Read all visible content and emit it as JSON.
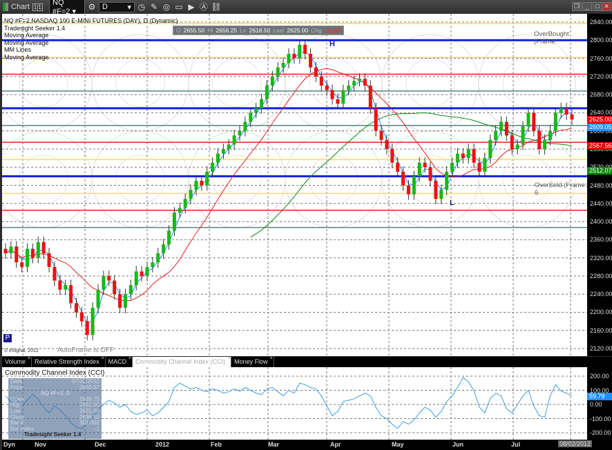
{
  "window": {
    "title": "Chart",
    "badge": "1|1",
    "symbol": "NQ #F=2",
    "interval": "D"
  },
  "toolbar_icons": [
    "gear-icon",
    "clock-icon",
    "pencil-icon",
    "draw-icon",
    "screen-icon",
    "play-icon",
    "annotation-icon",
    "link-icon"
  ],
  "legend": [
    "NQ #F=2,NASDAQ 100 E-MINI FUTURES (DAY), D (Dynamic)",
    "Tradesight Seeker 1.4",
    "Moving Average",
    "Moving Average",
    "MM Lines",
    "Moving Average"
  ],
  "ohlc": {
    "o_label": "O",
    "o": "2655.50",
    "h_label": "Hi",
    "h": "2656.25",
    "l_label": "Lo",
    "l": "2618.50",
    "last_label": "Last",
    "last": "2625.00",
    "chg_label": "Chg",
    "chg": "-11.50"
  },
  "annotations": {
    "overbought": "OverBought (Frame",
    "oversold": "OverSold (Frame: 6",
    "autoframe": "AutoFrame is OFF",
    "copyright": "© eSignal, 2012",
    "high_marker": "H",
    "low_marker": "L",
    "p_marker": "P"
  },
  "price_axis": {
    "ticks": [
      "2840.00",
      "2800.00",
      "2760.00",
      "2720.00",
      "2680.00",
      "2640.00",
      "2600.00",
      "2560.00",
      "2520.00",
      "2480.00",
      "2440.00",
      "2400.00",
      "2360.00",
      "2320.00",
      "2280.00",
      "2240.00",
      "2200.00",
      "2160.00",
      "2120.00"
    ],
    "tags": [
      {
        "value": "2625.00",
        "price": 2625,
        "color": "#e00000"
      },
      {
        "value": "2609.05",
        "price": 2609,
        "color": "#1e90ff"
      },
      {
        "value": "2567.56",
        "price": 2567.5,
        "color": "#e00000"
      },
      {
        "value": "2512.07",
        "price": 2512,
        "color": "#0a8a0a"
      }
    ]
  },
  "mm_lines": [
    {
      "price": 2837,
      "color": "#ffee00"
    },
    {
      "price": 2800,
      "color": "#1020e0"
    },
    {
      "price": 2762,
      "color": "#ffee00"
    },
    {
      "price": 2725,
      "color": "#e02020"
    },
    {
      "price": 2688,
      "color": "#5a8080"
    },
    {
      "price": 2650,
      "color": "#1020e0"
    },
    {
      "price": 2612,
      "color": "#5a8080"
    },
    {
      "price": 2575,
      "color": "#e02020"
    },
    {
      "price": 2537,
      "color": "#ffee00"
    },
    {
      "price": 2500,
      "color": "#1020e0"
    },
    {
      "price": 2462,
      "color": "#ffee00"
    },
    {
      "price": 2425,
      "color": "#e02020"
    },
    {
      "price": 2387,
      "color": "#5a8080"
    }
  ],
  "tabs": [
    {
      "label": "Volume"
    },
    {
      "label": "Relative Strength Index"
    },
    {
      "label": "MACD"
    },
    {
      "label": "Commodity Channel Index (CCI)",
      "active": true
    },
    {
      "label": "Money Flow"
    }
  ],
  "cci": {
    "title": "Commodity Channel Index (CCI)",
    "ticks": [
      "200.00",
      "100.00",
      "0.00",
      "-100.00",
      "-200.00"
    ],
    "last": "59.79"
  },
  "date_axis": {
    "labels": [
      "Nov",
      "Dec",
      "2012",
      "Feb",
      "Mar",
      "Apr",
      "May",
      "Jun",
      "Jul"
    ],
    "current": "08/02/2012",
    "left": "Dyn"
  },
  "readout": {
    "title": "NQ #F=2, D",
    "rows": [
      [
        "Date",
        "07/31/2012"
      ],
      [
        "Price",
        "2650.57"
      ],
      [
        "Open",
        "2639.75"
      ],
      [
        "High",
        "2652.50"
      ],
      [
        "Low",
        "2631.00"
      ],
      [
        "Close",
        "2636.50"
      ],
      [
        "Bar #",
        "301/302"
      ],
      [
        "Bar index",
        "-1"
      ]
    ],
    "footer": "Tradesight Seeker 1.4"
  },
  "chart_data": {
    "type": "candlestick",
    "ylim": [
      2120,
      2850
    ],
    "closes": [
      2330,
      2345,
      2310,
      2300,
      2340,
      2320,
      2355,
      2330,
      2300,
      2270,
      2250,
      2260,
      2220,
      2200,
      2180,
      2150,
      2210,
      2250,
      2280,
      2270,
      2240,
      2210,
      2240,
      2260,
      2290,
      2280,
      2300,
      2310,
      2330,
      2350,
      2380,
      2420,
      2430,
      2450,
      2470,
      2490,
      2480,
      2510,
      2530,
      2550,
      2560,
      2570,
      2590,
      2600,
      2620,
      2640,
      2650,
      2670,
      2700,
      2720,
      2740,
      2750,
      2770,
      2760,
      2790,
      2770,
      2740,
      2720,
      2700,
      2690,
      2670,
      2660,
      2690,
      2700,
      2710,
      2715,
      2700,
      2650,
      2600,
      2580,
      2560,
      2530,
      2510,
      2480,
      2460,
      2500,
      2530,
      2520,
      2490,
      2450,
      2470,
      2510,
      2530,
      2550,
      2540,
      2560,
      2530,
      2510,
      2540,
      2580,
      2600,
      2620,
      2590,
      2560,
      2570,
      2610,
      2640,
      2600,
      2560,
      2580,
      2600,
      2640,
      2650,
      2636,
      2625
    ],
    "ma_fast_color": "#1e90ff",
    "ma_slow_color": "#e02020",
    "ma_long_color": "#0a8a0a",
    "cci": [
      60,
      20,
      40,
      -10,
      30,
      70,
      40,
      -20,
      -60,
      -10,
      -40,
      -80,
      -130,
      -160,
      -170,
      -140,
      -90,
      -40,
      0,
      30,
      10,
      -20,
      0,
      -50,
      -70,
      -60,
      -40,
      -80,
      -60,
      -20,
      20,
      120,
      150,
      130,
      110,
      120,
      100,
      90,
      110,
      100,
      80,
      90,
      110,
      95,
      120,
      100,
      80,
      70,
      110,
      120,
      90,
      60,
      100,
      80,
      150,
      140,
      120,
      110,
      60,
      -10,
      -80,
      -50,
      20,
      30,
      40,
      60,
      80,
      60,
      -20,
      -80,
      -100,
      -140,
      -170,
      -120,
      -140,
      -110,
      -60,
      -20,
      -40,
      -90,
      -50,
      20,
      60,
      120,
      190,
      160,
      100,
      -20,
      -60,
      40,
      80,
      60,
      -30,
      -60,
      0,
      60,
      100,
      -10,
      -80,
      -90,
      60,
      140,
      95,
      80,
      60
    ]
  }
}
